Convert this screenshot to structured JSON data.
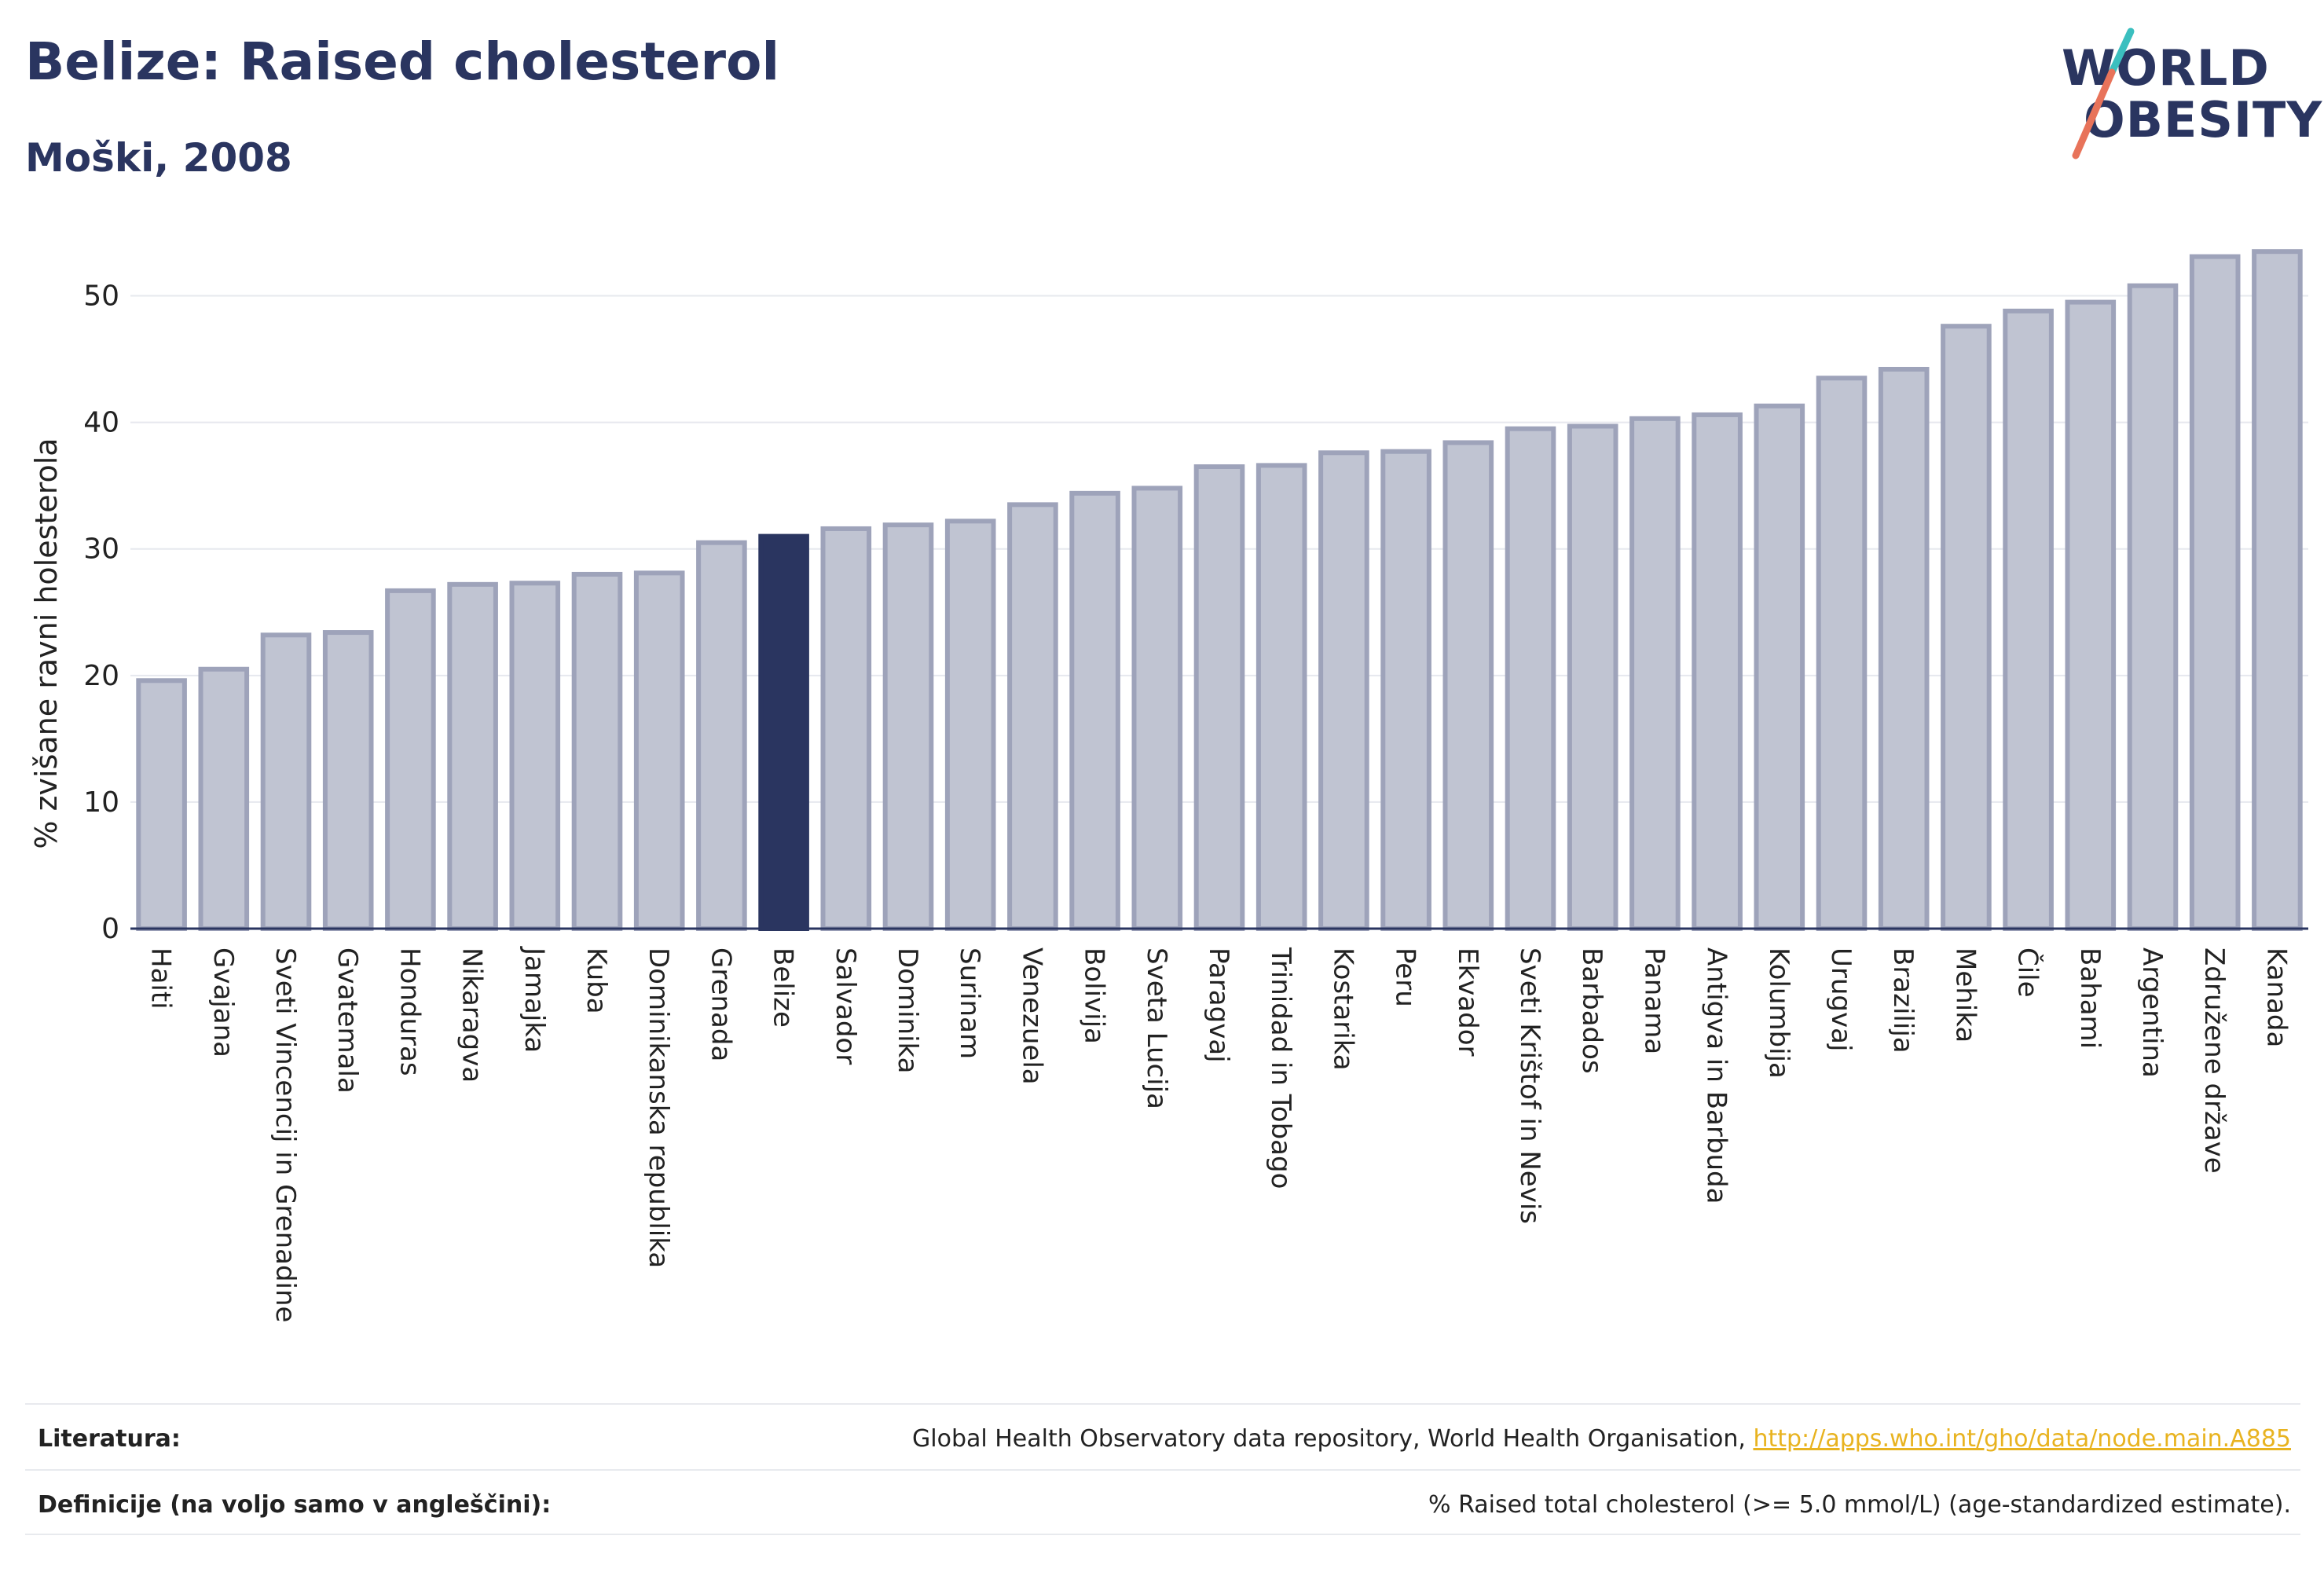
{
  "header": {
    "title": "Belize: Raised cholesterol",
    "subtitle": "Moški, 2008"
  },
  "logo": {
    "line1": "WORLD",
    "line2": "OBESITY"
  },
  "colors": {
    "highlight": "#2a3560",
    "bar_fill": "#c0c4d2",
    "bar_stroke": "#9ea3ba",
    "logo_slash_teal": "#3bbfbf",
    "logo_slash_red": "#e8735a",
    "link": "#e8b320"
  },
  "chart_data": {
    "type": "bar",
    "ylabel": "% zvišane ravni holesterola",
    "ylim": [
      0,
      55
    ],
    "yticks": [
      0,
      10,
      20,
      30,
      40,
      50
    ],
    "grid": true,
    "highlight": "Belize",
    "categories": [
      "Haiti",
      "Gvajana",
      "Sveti Vincencij in Grenadine",
      "Gvatemala",
      "Honduras",
      "Nikaragva",
      "Jamajka",
      "Kuba",
      "Dominikanska republika",
      "Grenada",
      "Belize",
      "Salvador",
      "Dominika",
      "Surinam",
      "Venezuela",
      "Bolivija",
      "Sveta Lucija",
      "Paragvaj",
      "Trinidad in Tobago",
      "Kostarika",
      "Peru",
      "Ekvador",
      "Sveti Krištof in Nevis",
      "Barbados",
      "Panama",
      "Antigva in Barbuda",
      "Kolumbija",
      "Urugvaj",
      "Brazilija",
      "Mehika",
      "Čile",
      "Bahami",
      "Argentina",
      "Združene države",
      "Kanada"
    ],
    "values": [
      19.6,
      20.5,
      23.2,
      23.4,
      26.7,
      27.2,
      27.3,
      28.0,
      28.1,
      30.5,
      31.0,
      31.6,
      31.9,
      32.2,
      33.5,
      34.4,
      34.8,
      36.5,
      36.6,
      37.6,
      37.7,
      38.4,
      39.5,
      39.7,
      40.3,
      40.6,
      41.3,
      43.5,
      44.2,
      47.6,
      48.8,
      49.5,
      50.8,
      53.1,
      53.5
    ]
  },
  "footer": {
    "sources_label": "Literatura:",
    "sources_text": "Global Health Observatory data repository, World Health Organisation, ",
    "sources_link": "http://apps.who.int/gho/data/node.main.A885",
    "definitions_label": "Definicije (na voljo samo v angleščini):",
    "definitions_text": "% Raised total cholesterol (>= 5.0 mmol/L) (age-standardized estimate)."
  }
}
